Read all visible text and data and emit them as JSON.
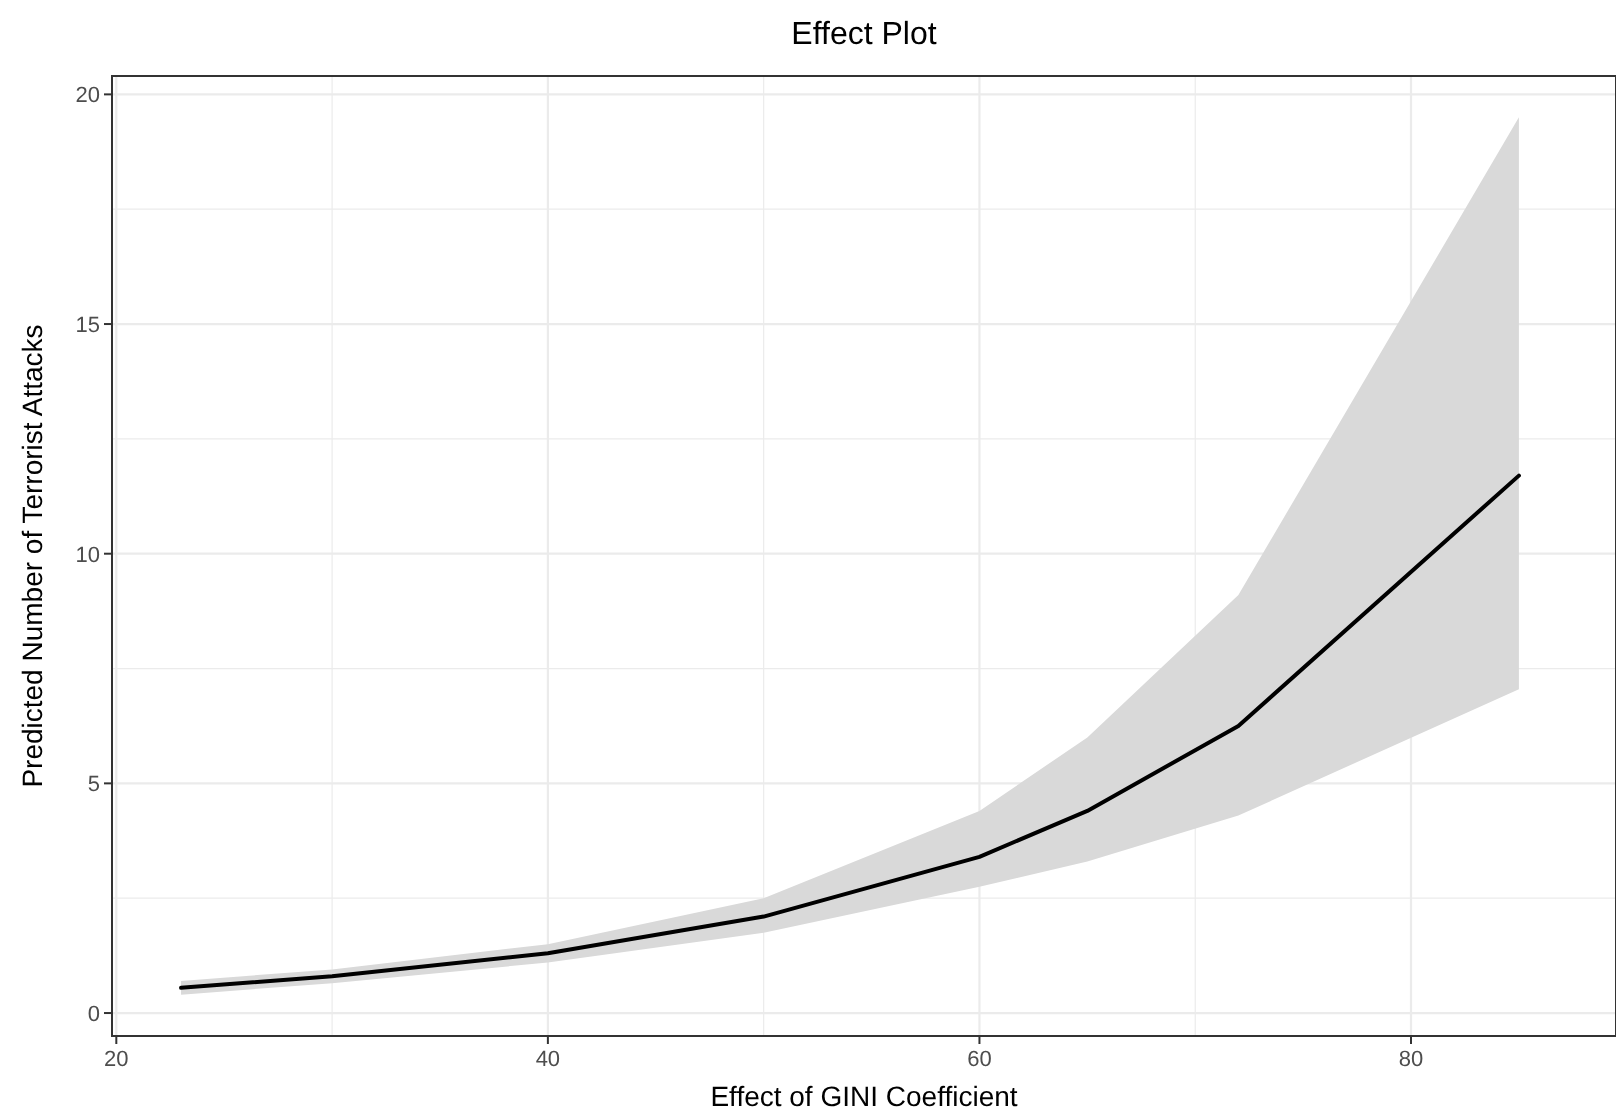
{
  "chart_data": {
    "type": "line",
    "title": "Effect Plot",
    "xlabel": "Effect of GINI Coefficient",
    "ylabel": "Predicted Number of Terrorist Attacks",
    "x": [
      23,
      30,
      40,
      50,
      60,
      65,
      72,
      85
    ],
    "series": [
      {
        "color": "#000000",
        "values": [
          0.55,
          0.8,
          1.3,
          2.1,
          3.4,
          4.4,
          6.25,
          11.7
        ],
        "lower": [
          0.4,
          0.65,
          1.1,
          1.75,
          2.75,
          3.3,
          4.3,
          7.05
        ],
        "upper": [
          0.7,
          0.95,
          1.5,
          2.5,
          4.4,
          6.0,
          9.1,
          19.5
        ]
      }
    ],
    "xlim": [
      19.8,
      89.5
    ],
    "ylim": [
      -0.5,
      20.4
    ],
    "xticks": [
      20,
      {
        "value": 30,
        "label": null
      },
      40,
      {
        "value": 50,
        "label": null
      },
      60,
      {
        "value": 70,
        "label": null
      },
      80
    ],
    "yticks": [
      0,
      {
        "value": 2.5,
        "label": null
      },
      5,
      {
        "value": 7.5,
        "label": null
      },
      10,
      {
        "value": 12.5,
        "label": null
      },
      15,
      {
        "value": 17.5,
        "label": null
      },
      20
    ],
    "grid": true,
    "line_style": "solid",
    "marker": "none"
  }
}
